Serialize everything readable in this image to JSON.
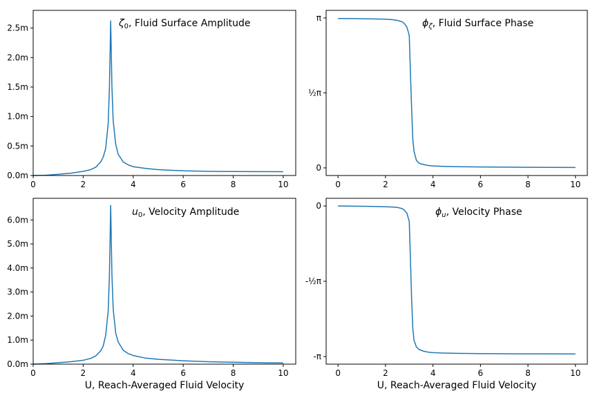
{
  "colors": {
    "series": "#1f77b4"
  },
  "chart_data": [
    {
      "id": "surface-amplitude",
      "type": "line",
      "title": "ζ0, Fluid Surface Amplitude",
      "title_parts": {
        "symbol": "ζ",
        "subscript": "0",
        "text": ", Fluid Surface Amplitude"
      },
      "xlabel": "",
      "xlim": [
        0,
        10.5
      ],
      "ylim": [
        0,
        0.0028
      ],
      "grid": false,
      "xticks": [
        0,
        2,
        4,
        6,
        8,
        10
      ],
      "xtick_labels": [
        "0",
        "2",
        "4",
        "6",
        "8",
        "10"
      ],
      "yticks": [
        0,
        0.0005,
        0.001,
        0.0015,
        0.002,
        0.0025
      ],
      "ytick_labels": [
        "0.0m",
        "0.5m",
        "1.0m",
        "1.5m",
        "2.0m",
        "2.5m"
      ],
      "series": [
        {
          "x": [
            0,
            0.5,
            1.0,
            1.5,
            2.0,
            2.3,
            2.5,
            2.7,
            2.8,
            2.9,
            3.0,
            3.05,
            3.1,
            3.15,
            3.2,
            3.3,
            3.4,
            3.6,
            3.8,
            4.0,
            4.5,
            5.0,
            6.0,
            7.0,
            8.0,
            9.0,
            10.0
          ],
          "y": [
            0,
            5e-06,
            2e-05,
            4e-05,
            7e-05,
            0.0001,
            0.00014,
            0.00023,
            0.00031,
            0.00046,
            0.00088,
            0.0015,
            0.00262,
            0.0015,
            0.00093,
            0.00053,
            0.00036,
            0.00023,
            0.00018,
            0.00015,
            0.00012,
            0.0001,
            8e-05,
            7e-05,
            6.8e-05,
            6.6e-05,
            6.5e-05
          ]
        }
      ]
    },
    {
      "id": "surface-phase",
      "type": "line",
      "title": "ϕζ, Fluid Surface Phase",
      "title_parts": {
        "symbol": "ϕ",
        "subscript": "ζ",
        "text": ", Fluid Surface Phase"
      },
      "xlabel": "",
      "xlim": [
        -0.5,
        10.5
      ],
      "ylim": [
        -0.16,
        3.3
      ],
      "grid": false,
      "xticks": [
        0,
        2,
        4,
        6,
        8,
        10
      ],
      "xtick_labels": [
        "0",
        "2",
        "4",
        "6",
        "8",
        "10"
      ],
      "yticks": [
        0,
        1.5708,
        3.1416
      ],
      "ytick_labels": [
        "0",
        "½π",
        "π"
      ],
      "series": [
        {
          "x": [
            0,
            0.5,
            1.0,
            1.5,
            2.0,
            2.3,
            2.5,
            2.7,
            2.8,
            2.9,
            3.0,
            3.05,
            3.1,
            3.15,
            3.2,
            3.3,
            3.4,
            3.6,
            3.8,
            4.0,
            4.5,
            5.0,
            6.0,
            7.0,
            8.0,
            9.0,
            10.0
          ],
          "y": [
            3.13,
            3.128,
            3.125,
            3.12,
            3.115,
            3.105,
            3.09,
            3.06,
            3.02,
            2.95,
            2.78,
            2.0,
            1.25,
            0.6,
            0.35,
            0.16,
            0.1,
            0.07,
            0.05,
            0.04,
            0.03,
            0.025,
            0.02,
            0.015,
            0.012,
            0.01,
            0.008
          ]
        }
      ]
    },
    {
      "id": "velocity-amplitude",
      "type": "line",
      "title": "u0, Velocity Amplitude",
      "title_parts": {
        "symbol": "u",
        "subscript": "0",
        "text": ", Velocity Amplitude"
      },
      "xlabel": "U, Reach-Averaged Fluid Velocity",
      "xlim": [
        0,
        10.5
      ],
      "ylim": [
        0,
        0.0069
      ],
      "grid": false,
      "xticks": [
        0,
        2,
        4,
        6,
        8,
        10
      ],
      "xtick_labels": [
        "0",
        "2",
        "4",
        "6",
        "8",
        "10"
      ],
      "yticks": [
        0,
        0.001,
        0.002,
        0.003,
        0.004,
        0.005,
        0.006
      ],
      "ytick_labels": [
        "0.0m",
        "1.0m",
        "2.0m",
        "3.0m",
        "4.0m",
        "5.0m",
        "6.0m"
      ],
      "series": [
        {
          "x": [
            0,
            0.5,
            1.0,
            1.5,
            2.0,
            2.3,
            2.5,
            2.7,
            2.8,
            2.9,
            3.0,
            3.05,
            3.1,
            3.15,
            3.2,
            3.3,
            3.4,
            3.6,
            3.8,
            4.0,
            4.5,
            5.0,
            6.0,
            7.0,
            8.0,
            9.0,
            10.0
          ],
          "y": [
            0,
            2e-05,
            6e-05,
            0.0001,
            0.00016,
            0.00024,
            0.00034,
            0.00055,
            0.00075,
            0.0012,
            0.0022,
            0.0037,
            0.0066,
            0.0037,
            0.0023,
            0.0013,
            0.00092,
            0.00058,
            0.00044,
            0.00036,
            0.00025,
            0.0002,
            0.00014,
            0.0001,
            8e-05,
            6e-05,
            5e-05
          ]
        }
      ]
    },
    {
      "id": "velocity-phase",
      "type": "line",
      "title": "ϕu, Velocity Phase",
      "title_parts": {
        "symbol": "ϕ",
        "subscript": "u",
        "text": ", Velocity Phase"
      },
      "xlabel": "U, Reach-Averaged Fluid Velocity",
      "xlim": [
        -0.5,
        10.5
      ],
      "ylim": [
        -3.3,
        0.16
      ],
      "grid": false,
      "xticks": [
        0,
        2,
        4,
        6,
        8,
        10
      ],
      "xtick_labels": [
        "0",
        "2",
        "4",
        "6",
        "8",
        "10"
      ],
      "yticks": [
        0,
        -1.5708,
        -3.1416
      ],
      "ytick_labels": [
        "0",
        "-½π",
        "-π"
      ],
      "series": [
        {
          "x": [
            0,
            0.5,
            1.0,
            1.5,
            2.0,
            2.3,
            2.5,
            2.7,
            2.8,
            2.9,
            3.0,
            3.05,
            3.1,
            3.15,
            3.2,
            3.3,
            3.4,
            3.6,
            3.8,
            4.0,
            4.5,
            5.0,
            6.0,
            7.0,
            8.0,
            9.0,
            10.0
          ],
          "y": [
            0,
            -0.003,
            -0.006,
            -0.01,
            -0.016,
            -0.022,
            -0.03,
            -0.055,
            -0.09,
            -0.15,
            -0.32,
            -1.1,
            -1.95,
            -2.55,
            -2.8,
            -2.94,
            -2.99,
            -3.03,
            -3.05,
            -3.06,
            -3.07,
            -3.075,
            -3.08,
            -3.083,
            -3.085,
            -3.086,
            -3.087
          ]
        }
      ]
    }
  ]
}
